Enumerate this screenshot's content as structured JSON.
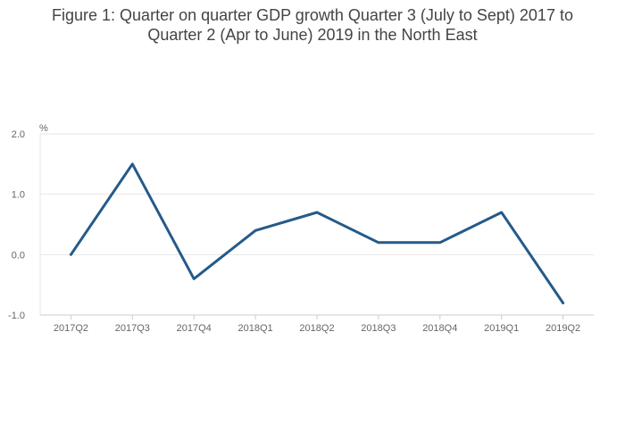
{
  "chart_data": {
    "type": "line",
    "title_lines": [
      "Figure 1: Quarter on quarter GDP growth Quarter 3 (July to Sept) 2017 to",
      "Quarter 2 (Apr to June) 2019 in the North East"
    ],
    "ylabel": "%",
    "xlabel": "",
    "categories": [
      "2017Q2",
      "2017Q3",
      "2017Q4",
      "2018Q1",
      "2018Q2",
      "2018Q3",
      "2018Q4",
      "2019Q1",
      "2019Q2"
    ],
    "series": [
      {
        "values": [
          0.0,
          1.5,
          -0.4,
          0.4,
          0.7,
          0.2,
          0.2,
          0.7,
          -0.8
        ],
        "color": "#255a8a"
      }
    ],
    "ylim": [
      -1.0,
      2.0
    ],
    "yticks": [
      -1.0,
      0.0,
      1.0,
      2.0
    ],
    "ytick_labels": [
      "-1.0",
      "0.0",
      "1.0",
      "2.0"
    ],
    "grid": true,
    "legend": "none"
  }
}
